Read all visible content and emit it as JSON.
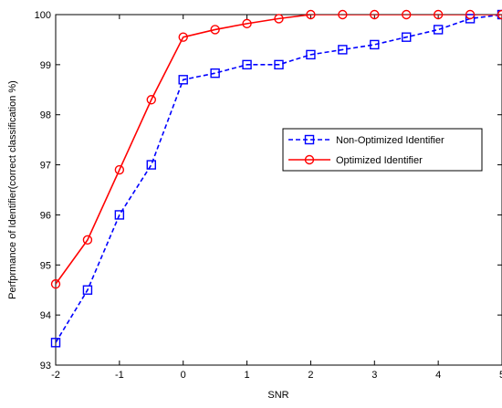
{
  "chart_data": {
    "type": "line",
    "title": "",
    "xlabel": "SNR",
    "ylabel": "Perfprmance of Identifier(correct classification %)",
    "xlim": [
      -2,
      5
    ],
    "ylim": [
      93,
      100
    ],
    "xticks": [
      -2,
      -1,
      0,
      1,
      2,
      3,
      4,
      5
    ],
    "yticks": [
      93,
      94,
      95,
      96,
      97,
      98,
      99,
      100
    ],
    "grid": false,
    "legend_position": "center-right",
    "series": [
      {
        "name": "Non-Optimized Identifier",
        "color": "#0000ff",
        "line_style": "dashed",
        "marker": "square",
        "x": [
          -2,
          -1.5,
          -1,
          -0.5,
          0,
          0.5,
          1,
          1.5,
          2,
          2.5,
          3,
          3.5,
          4,
          4.5,
          5
        ],
        "y": [
          93.45,
          94.5,
          96.0,
          97.0,
          98.7,
          98.83,
          99.0,
          99.0,
          99.2,
          99.3,
          99.4,
          99.55,
          99.7,
          99.92,
          100.0
        ]
      },
      {
        "name": "Optimized Identifier",
        "color": "#ff0000",
        "line_style": "solid",
        "marker": "circle",
        "x": [
          -2,
          -1.5,
          -1,
          -0.5,
          0,
          0.5,
          1,
          1.5,
          2,
          2.5,
          3,
          3.5,
          4,
          4.5,
          5
        ],
        "y": [
          94.62,
          95.5,
          96.9,
          98.3,
          99.55,
          99.7,
          99.82,
          99.92,
          100.0,
          100.0,
          100.0,
          100.0,
          100.0,
          100.0,
          100.0
        ]
      }
    ]
  }
}
